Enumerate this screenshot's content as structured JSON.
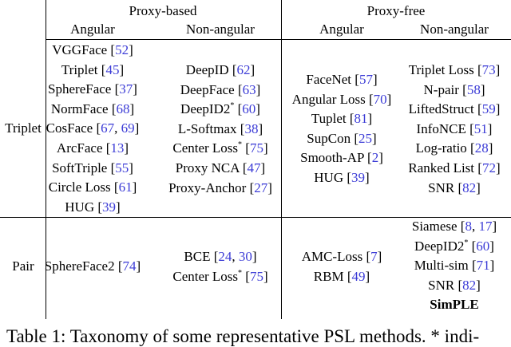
{
  "header": {
    "proxy_based": "Proxy-based",
    "proxy_free": "Proxy-free",
    "angular_1": "Angular",
    "non_angular_1": "Non-angular",
    "angular_2": "Angular",
    "non_angular_2": "Non-angular"
  },
  "row_labels": {
    "triplet": "Triplet",
    "pair": "Pair"
  },
  "triplet": {
    "pb_angular": [
      {
        "name": "VGGFace",
        "cites": [
          "52"
        ]
      },
      {
        "name": "Triplet",
        "cites": [
          "45"
        ]
      },
      {
        "name": "SphereFace",
        "cites": [
          "37"
        ]
      },
      {
        "name": "NormFace",
        "cites": [
          "68"
        ]
      },
      {
        "name": "CosFace",
        "cites": [
          "67",
          "69"
        ]
      },
      {
        "name": "ArcFace",
        "cites": [
          "13"
        ]
      },
      {
        "name": "SoftTriple",
        "cites": [
          "55"
        ]
      },
      {
        "name": "Circle Loss",
        "cites": [
          "61"
        ]
      },
      {
        "name": "HUG",
        "cites": [
          "39"
        ]
      }
    ],
    "pb_nonangular": [
      {
        "name": "DeepID",
        "cites": [
          "62"
        ]
      },
      {
        "name": "DeepFace",
        "cites": [
          "63"
        ]
      },
      {
        "name": "DeepID2",
        "star": "*",
        "cites": [
          "60"
        ]
      },
      {
        "name": "L-Softmax",
        "cites": [
          "38"
        ]
      },
      {
        "name": "Center Loss",
        "star": "*",
        "cites": [
          "75"
        ]
      },
      {
        "name": "Proxy NCA",
        "cites": [
          "47"
        ]
      },
      {
        "name": "Proxy-Anchor",
        "cites": [
          "27"
        ]
      }
    ],
    "pf_angular": [
      {
        "name": "FaceNet",
        "cites": [
          "57"
        ]
      },
      {
        "name": "Angular Loss",
        "cites": [
          "70"
        ]
      },
      {
        "name": "Tuplet",
        "cites": [
          "81"
        ]
      },
      {
        "name": "SupCon",
        "cites": [
          "25"
        ]
      },
      {
        "name": "Smooth-AP",
        "cites": [
          "2"
        ]
      },
      {
        "name": "HUG",
        "cites": [
          "39"
        ]
      }
    ],
    "pf_nonangular": [
      {
        "name": "Triplet Loss",
        "cites": [
          "73"
        ]
      },
      {
        "name": "N-pair",
        "cites": [
          "58"
        ]
      },
      {
        "name": "LiftedStruct",
        "cites": [
          "59"
        ]
      },
      {
        "name": "InfoNCE",
        "cites": [
          "51"
        ]
      },
      {
        "name": "Log-ratio",
        "cites": [
          "28"
        ]
      },
      {
        "name": "Ranked List",
        "cites": [
          "72"
        ]
      },
      {
        "name": "SNR",
        "cites": [
          "82"
        ]
      }
    ]
  },
  "pair": {
    "pb_angular": [
      {
        "name": "SphereFace2",
        "cites": [
          "74"
        ]
      }
    ],
    "pb_nonangular": [
      {
        "name": "BCE",
        "cites": [
          "24",
          "30"
        ]
      },
      {
        "name": "Center Loss",
        "star": "*",
        "cites": [
          "75"
        ]
      }
    ],
    "pf_angular": [
      {
        "name": "AMC-Loss",
        "cites": [
          "7"
        ]
      },
      {
        "name": "RBM",
        "cites": [
          "49"
        ]
      }
    ],
    "pf_nonangular": [
      {
        "name": "Siamese",
        "cites": [
          "8",
          "17"
        ]
      },
      {
        "name": "DeepID2",
        "star": "*",
        "cites": [
          "60"
        ]
      },
      {
        "name": "Multi-sim",
        "cites": [
          "71"
        ]
      },
      {
        "name": "SNR",
        "cites": [
          "82"
        ]
      },
      {
        "name": "SimPLE",
        "bold": true,
        "cites": []
      }
    ]
  },
  "caption": "Table 1: Taxonomy of some representative PSL methods. * indi-",
  "colors": {
    "cite": "#3b3bd6",
    "rule": "#000000"
  }
}
